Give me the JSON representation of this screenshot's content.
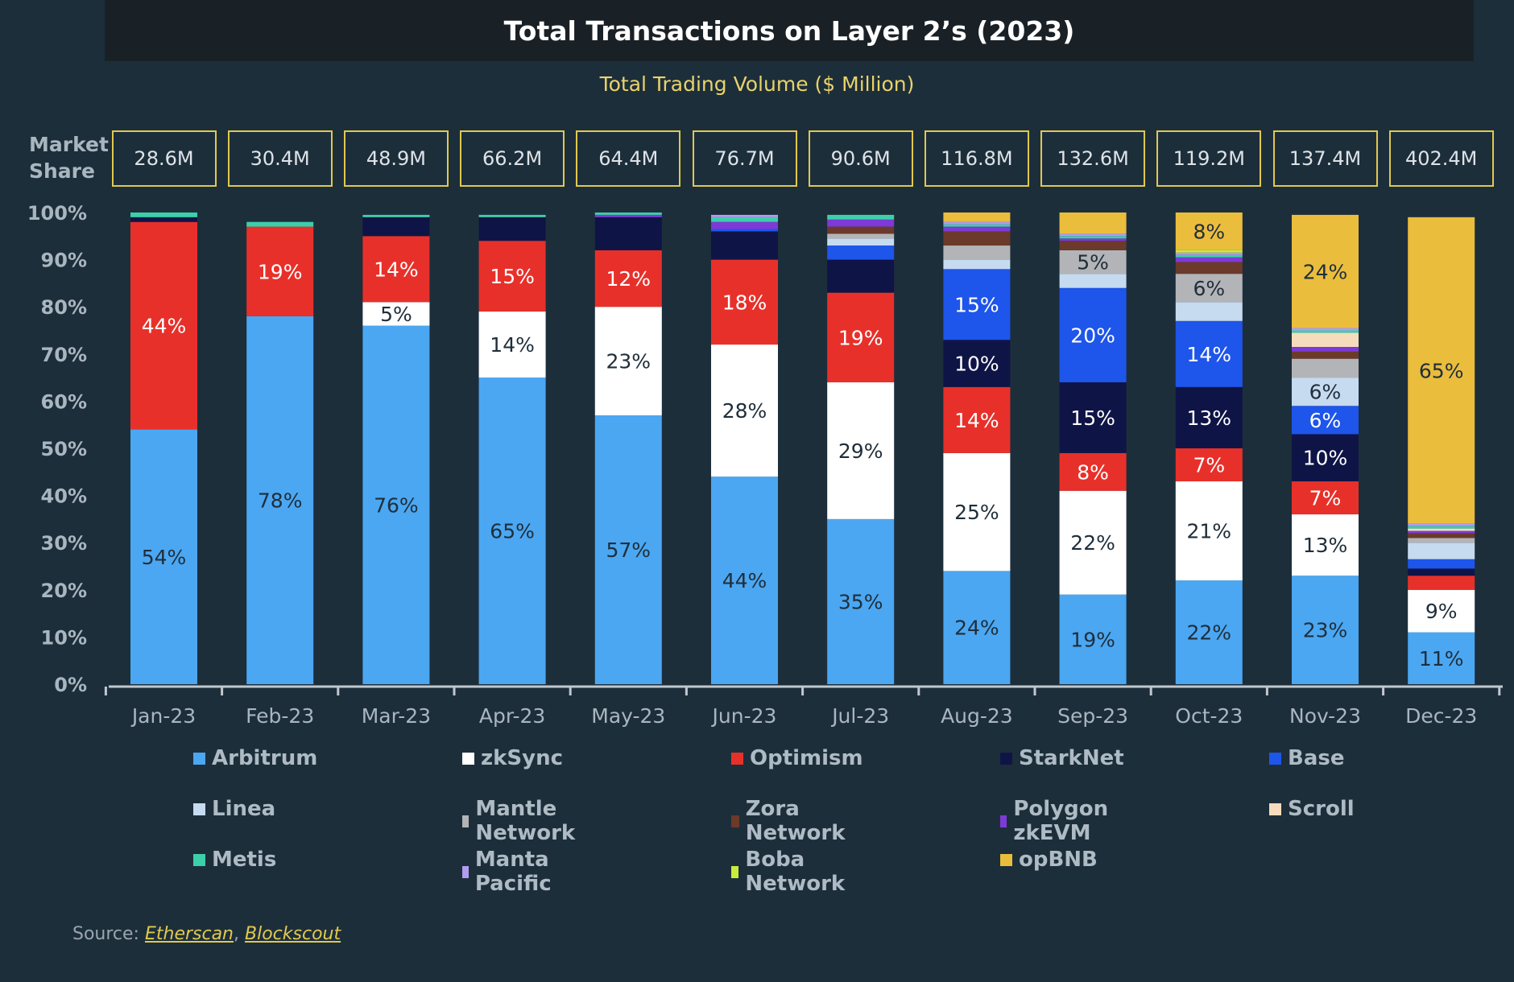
{
  "title": "Total Transactions on Layer 2’s (2023)",
  "subtitle": "Total Trading Volume ($ Million)",
  "market_share_label_line1": "Market",
  "market_share_label_line2": "Share",
  "source": {
    "prefix": "Source: ",
    "link1": "Etherscan",
    "separator": ", ",
    "link2": "Blockscout"
  },
  "colors": {
    "Arbitrum": "#4ba7f2",
    "zkSync": "#ffffff",
    "Optimism": "#e8302a",
    "StarkNet": "#0f1447",
    "Base": "#1e55ea",
    "Linea": "#c6daf0",
    "Mantle Network": "#b3b4b7",
    "Zora Network": "#6b3a2a",
    "Polygon zkEVM": "#7d3ad6",
    "Scroll": "#f6dcbc",
    "Metis": "#3ccfaa",
    "Manta Pacific": "#b19cf0",
    "Boba Network": "#c9ec3a",
    "opBNB": "#ebbd3d"
  },
  "chart_data": {
    "type": "bar",
    "stacked": true,
    "title": "Total Transactions on Layer 2’s (2023)",
    "subtitle": "Total Trading Volume ($ Million)",
    "ylabel": "Market Share",
    "ylim": [
      0,
      100
    ],
    "yticks": [
      "0%",
      "10%",
      "20%",
      "30%",
      "40%",
      "50%",
      "60%",
      "70%",
      "80%",
      "90%",
      "100%"
    ],
    "categories": [
      "Jan-23",
      "Feb-23",
      "Mar-23",
      "Apr-23",
      "May-23",
      "Jun-23",
      "Jul-23",
      "Aug-23",
      "Sep-23",
      "Oct-23",
      "Nov-23",
      "Dec-23"
    ],
    "volumes": [
      "28.6M",
      "30.4M",
      "48.9M",
      "66.2M",
      "64.4M",
      "76.7M",
      "90.6M",
      "116.8M",
      "132.6M",
      "119.2M",
      "137.4M",
      "402.4M"
    ],
    "series": [
      {
        "name": "Arbitrum",
        "values": [
          54,
          78,
          76,
          65,
          57,
          44,
          35,
          24,
          19,
          22,
          23,
          11
        ],
        "labels": [
          "54%",
          "78%",
          "76%",
          "65%",
          "57%",
          "44%",
          "35%",
          "24%",
          "19%",
          "22%",
          "23%",
          "11%"
        ]
      },
      {
        "name": "zkSync",
        "values": [
          0,
          0,
          5,
          14,
          23,
          28,
          29,
          25,
          22,
          21,
          13,
          9
        ],
        "labels": [
          "",
          "",
          "5%",
          "14%",
          "23%",
          "28%",
          "29%",
          "25%",
          "22%",
          "21%",
          "13%",
          "9%"
        ]
      },
      {
        "name": "Optimism",
        "values": [
          44,
          19,
          14,
          15,
          12,
          18,
          19,
          14,
          8,
          7,
          7,
          3
        ],
        "labels": [
          "44%",
          "19%",
          "14%",
          "15%",
          "12%",
          "18%",
          "19%",
          "14%",
          "8%",
          "7%",
          "7%",
          ""
        ]
      },
      {
        "name": "StarkNet",
        "values": [
          1,
          0,
          4,
          5,
          7,
          6,
          7,
          10,
          15,
          13,
          10,
          1.5
        ],
        "labels": [
          "",
          "",
          "",
          "",
          "",
          "",
          "",
          "10%",
          "15%",
          "13%",
          "10%",
          ""
        ]
      },
      {
        "name": "Base",
        "values": [
          0,
          0,
          0,
          0,
          0,
          0.5,
          3,
          15,
          20,
          14,
          6,
          2
        ],
        "labels": [
          "",
          "",
          "",
          "",
          "",
          "",
          "",
          "15%",
          "20%",
          "14%",
          "6%",
          ""
        ]
      },
      {
        "name": "Linea",
        "values": [
          0,
          0,
          0,
          0,
          0,
          0,
          1.5,
          2,
          3,
          4,
          6,
          3.5
        ],
        "labels": [
          "",
          "",
          "",
          "",
          "",
          "",
          "",
          "",
          "",
          "",
          "6%",
          ""
        ]
      },
      {
        "name": "Mantle Network",
        "values": [
          0,
          0,
          0,
          0,
          0,
          0,
          1,
          3,
          5,
          6,
          4,
          1
        ],
        "labels": [
          "",
          "",
          "",
          "",
          "",
          "",
          "",
          "",
          "5%",
          "6%",
          "",
          ""
        ]
      },
      {
        "name": "Zora Network",
        "values": [
          0,
          0,
          0,
          0,
          0,
          0,
          1.5,
          3,
          2,
          2.5,
          1.5,
          1
        ],
        "labels": [
          "",
          "",
          "",
          "",
          "",
          "",
          "",
          "",
          "",
          "",
          "",
          ""
        ]
      },
      {
        "name": "Polygon zkEVM",
        "values": [
          0,
          0,
          0,
          0,
          0.5,
          1.5,
          1.5,
          1,
          0.5,
          1,
          1,
          0.5
        ],
        "labels": [
          "",
          "",
          "",
          "",
          "",
          "",
          "",
          "",
          "",
          "",
          "",
          ""
        ]
      },
      {
        "name": "Scroll",
        "values": [
          0,
          0,
          0,
          0,
          0,
          0,
          0,
          0,
          0,
          0,
          3,
          0.5
        ],
        "labels": [
          "",
          "",
          "",
          "",
          "",
          "",
          "",
          "",
          "",
          "",
          "",
          ""
        ]
      },
      {
        "name": "Metis",
        "values": [
          1,
          1,
          0.5,
          0.5,
          0.5,
          1,
          1,
          0.5,
          0.5,
          0.5,
          0.5,
          0.5
        ],
        "labels": [
          "",
          "",
          "",
          "",
          "",
          "",
          "",
          "",
          "",
          "",
          "",
          ""
        ]
      },
      {
        "name": "Manta Pacific",
        "values": [
          0,
          0,
          0,
          0,
          0,
          0.5,
          0,
          0.5,
          0.5,
          0.5,
          0.5,
          0.5
        ],
        "labels": [
          "",
          "",
          "",
          "",
          "",
          "",
          "",
          "",
          "",
          "",
          "",
          ""
        ]
      },
      {
        "name": "Boba Network",
        "values": [
          0,
          0,
          0,
          0,
          0,
          0,
          0,
          0,
          0,
          0.5,
          0,
          0
        ],
        "labels": [
          "",
          "",
          "",
          "",
          "",
          "",
          "",
          "",
          "",
          "",
          "",
          ""
        ]
      },
      {
        "name": "opBNB",
        "values": [
          0,
          0,
          0,
          0,
          0,
          0,
          0,
          2,
          4.5,
          8,
          24,
          65
        ],
        "labels": [
          "",
          "",
          "",
          "",
          "",
          "",
          "",
          "",
          "",
          "8%",
          "24%",
          "65%"
        ]
      }
    ],
    "legend": [
      "Arbitrum",
      "zkSync",
      "Optimism",
      "StarkNet",
      "Base",
      "Linea",
      "Mantle Network",
      "Zora Network",
      "Polygon zkEVM",
      "Scroll",
      "Metis",
      "Manta Pacific",
      "Boba Network",
      "opBNB"
    ],
    "legend_position": "bottom"
  }
}
